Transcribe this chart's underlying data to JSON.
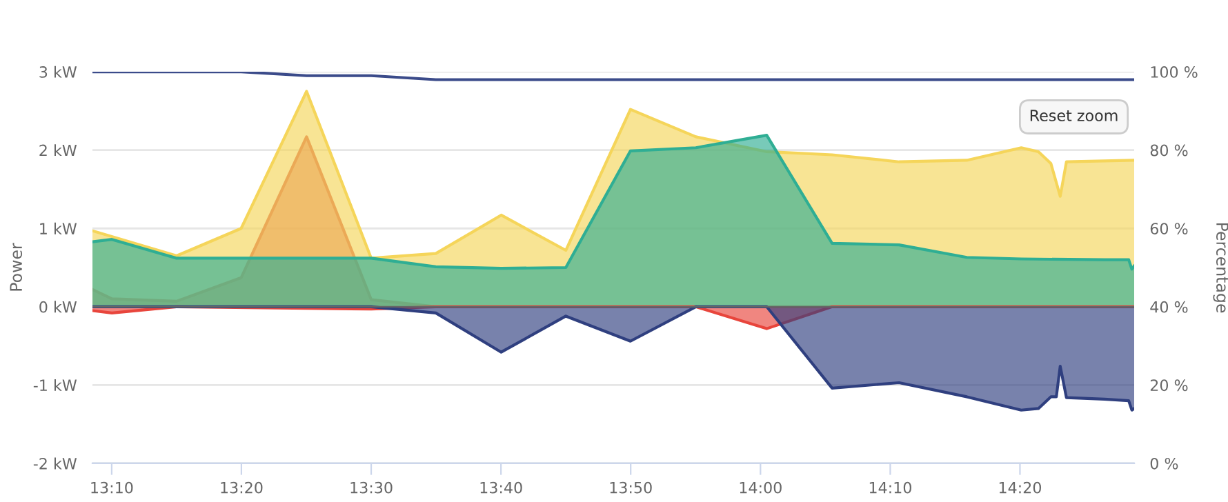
{
  "chart_data": {
    "type": "area",
    "ylabel": "Power",
    "y2label": "Percentage",
    "xlim": [
      13.142,
      14.48
    ],
    "xticks": [
      {
        "value": 13.1667,
        "label": "13:10"
      },
      {
        "value": 13.3333,
        "label": "13:20"
      },
      {
        "value": 13.5,
        "label": "13:30"
      },
      {
        "value": 13.6667,
        "label": "13:40"
      },
      {
        "value": 13.8333,
        "label": "13:50"
      },
      {
        "value": 14.0,
        "label": "14:00"
      },
      {
        "value": 14.1667,
        "label": "14:10"
      },
      {
        "value": 14.3333,
        "label": "14:20"
      }
    ],
    "ylim": [
      -2,
      3
    ],
    "yticks": [
      {
        "value": -2,
        "label": "-2 kW"
      },
      {
        "value": -1,
        "label": "-1 kW"
      },
      {
        "value": 0,
        "label": "0 kW"
      },
      {
        "value": 1,
        "label": "1 kW"
      },
      {
        "value": 2,
        "label": "2 kW"
      },
      {
        "value": 3,
        "label": "3 kW"
      }
    ],
    "y2lim": [
      0,
      100
    ],
    "y2ticks": [
      {
        "value": 0,
        "label": "0 %"
      },
      {
        "value": 20,
        "label": "20 %"
      },
      {
        "value": 40,
        "label": "40 %"
      },
      {
        "value": 60,
        "label": "60 %"
      },
      {
        "value": 80,
        "label": "80 %"
      },
      {
        "value": 100,
        "label": "100 %"
      }
    ],
    "grid": "y",
    "legend": false,
    "marker": "none",
    "line_style": "solid",
    "annotations": [
      "Reset zoom"
    ],
    "series": [
      {
        "color": "#f5d55a",
        "x": [
          13.142,
          13.25,
          13.333,
          13.417,
          13.5,
          13.583,
          13.667,
          13.75,
          13.833,
          13.917,
          14.008,
          14.092,
          14.178,
          14.265,
          14.335,
          14.357,
          14.373,
          14.385,
          14.393,
          14.48
        ],
        "values": [
          0.97,
          0.65,
          1.0,
          2.75,
          0.62,
          0.68,
          1.17,
          0.72,
          2.52,
          2.17,
          1.98,
          1.94,
          1.85,
          1.87,
          2.03,
          1.98,
          1.83,
          1.41,
          1.85,
          1.87
        ]
      },
      {
        "color": "#eba956",
        "x": [
          13.142,
          13.167,
          13.25,
          13.333,
          13.417,
          13.5,
          13.583,
          14.48
        ],
        "values": [
          0.22,
          0.1,
          0.07,
          0.37,
          2.17,
          0.09,
          0,
          0
        ]
      },
      {
        "color": "#2fae94",
        "x": [
          13.142,
          13.167,
          13.25,
          13.5,
          13.583,
          13.667,
          13.75,
          13.833,
          13.917,
          14.008,
          14.092,
          14.178,
          14.265,
          14.335,
          14.442,
          14.473,
          14.477,
          14.48
        ],
        "values": [
          0.83,
          0.86,
          0.62,
          0.62,
          0.51,
          0.49,
          0.5,
          1.99,
          2.03,
          2.19,
          0.81,
          0.79,
          0.63,
          0.61,
          0.6,
          0.6,
          0.48,
          0.52
        ]
      },
      {
        "color": "#e8453c",
        "x": [
          13.142,
          13.167,
          13.25,
          13.5,
          13.583,
          13.917,
          14.008,
          14.092,
          14.48
        ],
        "values": [
          -0.05,
          -0.08,
          0,
          -0.03,
          0,
          0,
          -0.28,
          0,
          0
        ]
      },
      {
        "color": "#2f3f7f",
        "x": [
          13.142,
          13.5,
          13.583,
          13.667,
          13.75,
          13.833,
          13.917,
          14.008,
          14.092,
          14.178,
          14.265,
          14.335,
          14.357,
          14.373,
          14.38,
          14.385,
          14.393,
          14.442,
          14.473,
          14.477,
          14.48
        ],
        "values": [
          0,
          0,
          -0.08,
          -0.58,
          -0.12,
          -0.44,
          0,
          0,
          -1.04,
          -0.97,
          -1.15,
          -1.32,
          -1.3,
          -1.15,
          -1.15,
          -0.76,
          -1.16,
          -1.18,
          -1.2,
          -1.32,
          -1.3
        ]
      },
      {
        "type": "line",
        "axis": "y2",
        "color": "#3b4b8a",
        "x": [
          13.142,
          13.333,
          13.417,
          13.5,
          13.583,
          14.48
        ],
        "values": [
          100,
          100,
          99,
          99,
          98,
          98
        ]
      }
    ]
  }
}
